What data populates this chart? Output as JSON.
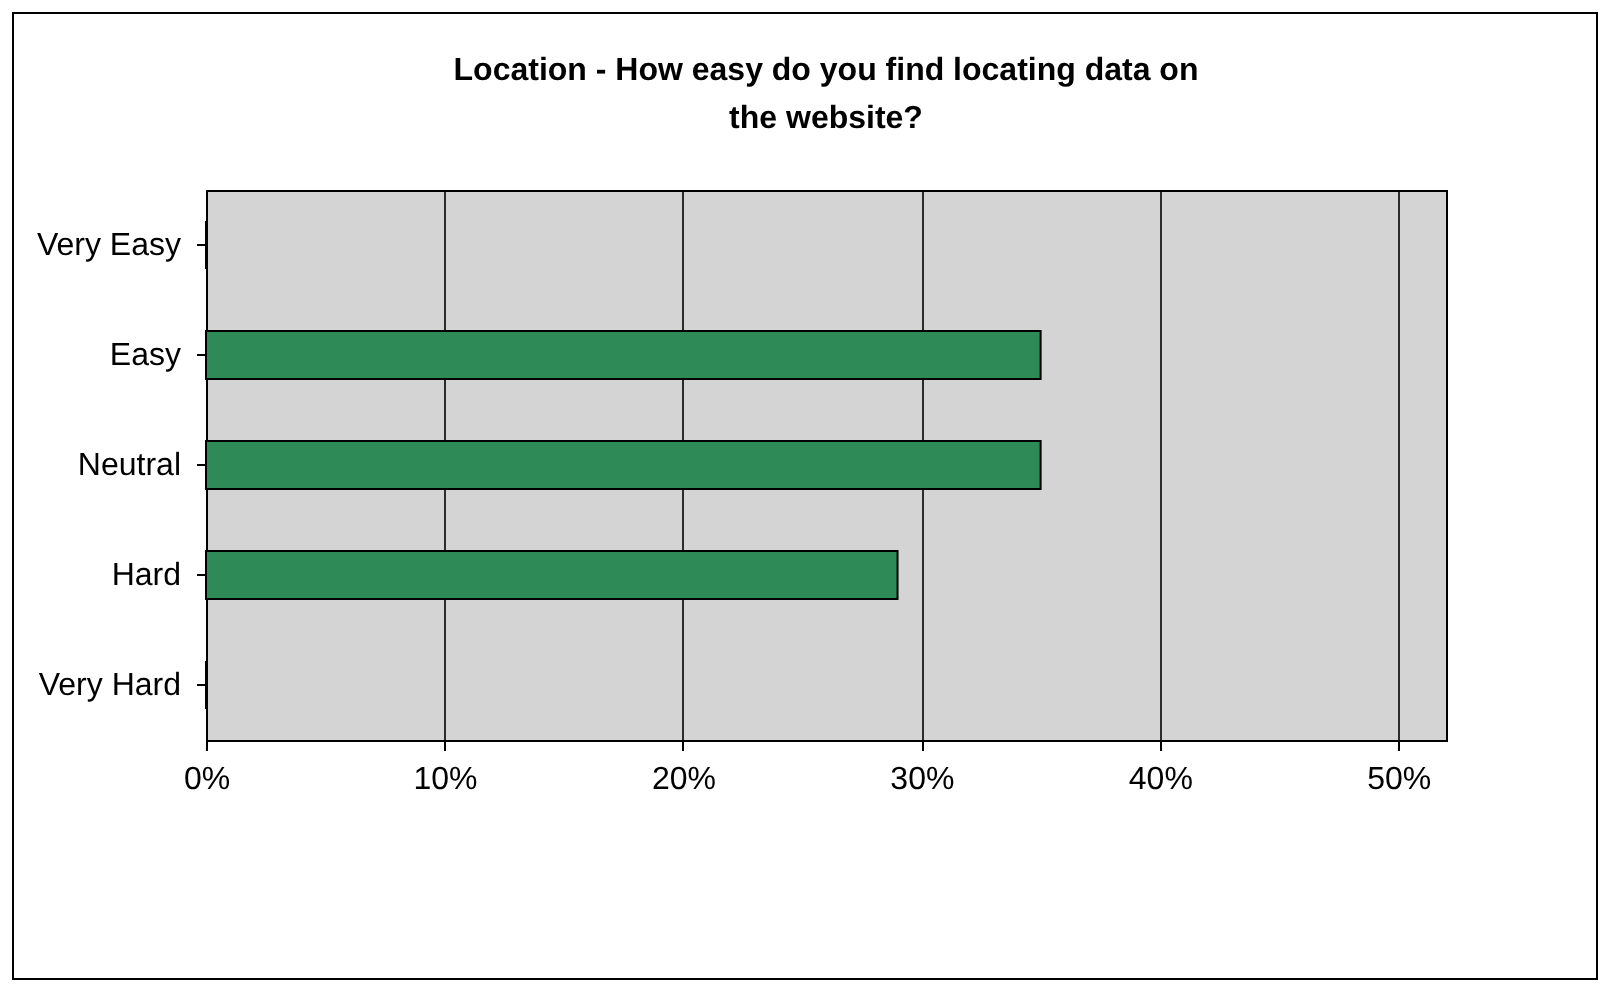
{
  "chart_data": {
    "type": "bar",
    "orientation": "horizontal",
    "title": "Location - How easy do you find locating data on the website?",
    "categories": [
      "Very Easy",
      "Easy",
      "Neutral",
      "Hard",
      "Very Hard"
    ],
    "values": [
      0,
      35,
      35,
      29,
      0
    ],
    "color": "#2e8b57",
    "xlim": [
      0,
      52
    ],
    "xticks": [
      {
        "value": 0,
        "label": "0%"
      },
      {
        "value": 10,
        "label": "10%"
      },
      {
        "value": 20,
        "label": "20%"
      },
      {
        "value": 30,
        "label": "30%"
      },
      {
        "value": 40,
        "label": "40%"
      },
      {
        "value": 50,
        "label": "50%"
      }
    ],
    "grid": "x"
  }
}
